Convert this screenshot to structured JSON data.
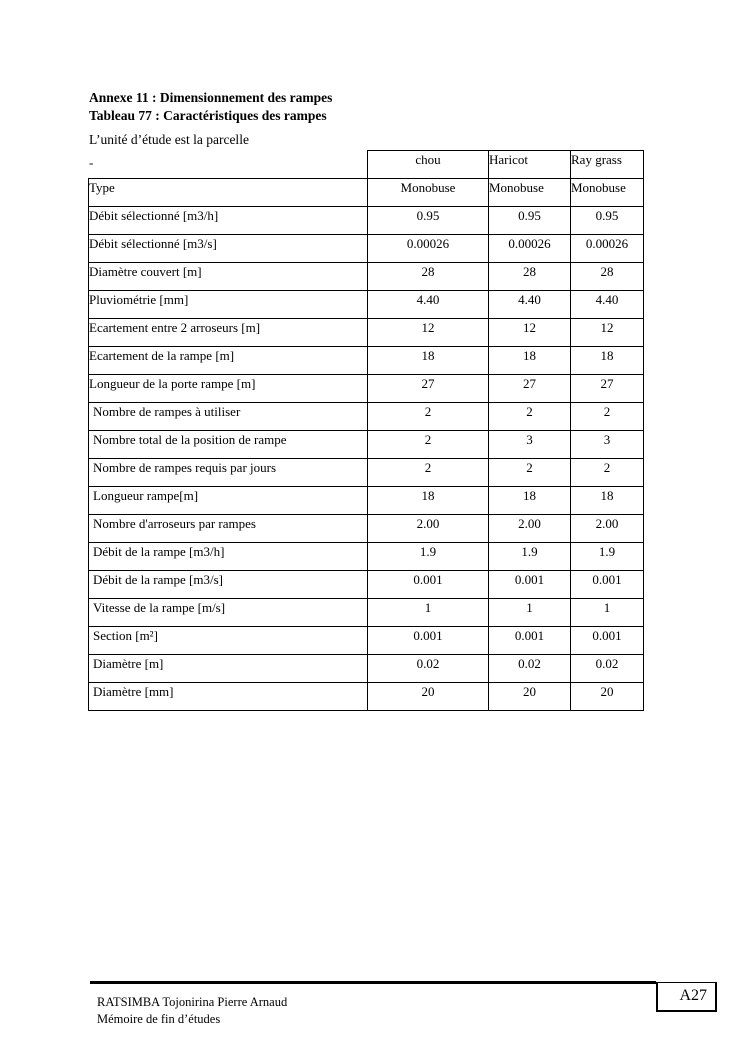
{
  "annex_title": "Annexe 11 : Dimensionnement des rampes",
  "table_title": "Tableau 77 : Caractéristiques des rampes",
  "intro": "L’unité d’étude est la parcelle",
  "dash": "-",
  "table": {
    "columns": [
      "chou",
      "Haricot",
      "Ray grass"
    ],
    "rows": [
      {
        "label": "Type",
        "values": [
          "Monobuse",
          "Monobuse",
          "Monobuse"
        ]
      },
      {
        "label": "Débit sélectionné [m3/h]",
        "values": [
          "0.95",
          "0.95",
          "0.95"
        ]
      },
      {
        "label": "Débit sélectionné [m3/s]",
        "values": [
          "0.00026",
          "0.00026",
          "0.00026"
        ]
      },
      {
        "label": "Diamètre couvert [m]",
        "values": [
          "28",
          "28",
          "28"
        ]
      },
      {
        "label": "Pluviométrie [mm]",
        "values": [
          "4.40",
          "4.40",
          "4.40"
        ]
      },
      {
        "label": "Ecartement entre 2 arroseurs [m]",
        "values": [
          "12",
          "12",
          "12"
        ]
      },
      {
        "label": "Ecartement de la rampe [m]",
        "values": [
          "18",
          "18",
          "18"
        ]
      },
      {
        "label": "Longueur de la  porte rampe [m]",
        "values": [
          "27",
          "27",
          "27"
        ]
      },
      {
        "label": "Nombre de rampes à utiliser",
        "values": [
          "2",
          "2",
          "2"
        ]
      },
      {
        "label": "Nombre total de la position de rampe",
        "values": [
          "2",
          "3",
          "3"
        ]
      },
      {
        "label": "Nombre de rampes requis par jours",
        "values": [
          "2",
          "2",
          "2"
        ]
      },
      {
        "label": "Longueur rampe[m]",
        "values": [
          "18",
          "18",
          "18"
        ]
      },
      {
        "label": "Nombre d'arroseurs par rampes",
        "values": [
          "2.00",
          "2.00",
          "2.00"
        ]
      },
      {
        "label": "Débit de la rampe [m3/h]",
        "values": [
          "1.9",
          "1.9",
          "1.9"
        ]
      },
      {
        "label": "Débit de la rampe [m3/s]",
        "values": [
          "0.001",
          "0.001",
          "0.001"
        ]
      },
      {
        "label": "Vitesse de la rampe [m/s]",
        "values": [
          "1",
          "1",
          "1"
        ]
      },
      {
        "label": "Section [m²]",
        "values": [
          "0.001",
          "0.001",
          "0.001"
        ]
      },
      {
        "label": "Diamètre [m]",
        "values": [
          "0.02",
          "0.02",
          "0.02"
        ]
      },
      {
        "label": "Diamètre [mm]",
        "values": [
          "20",
          "20",
          "20"
        ]
      }
    ]
  },
  "footer": {
    "author": "RATSIMBA Tojonirina Pierre Arnaud",
    "subtitle": "Mémoire de fin d’études",
    "page": "A27"
  }
}
